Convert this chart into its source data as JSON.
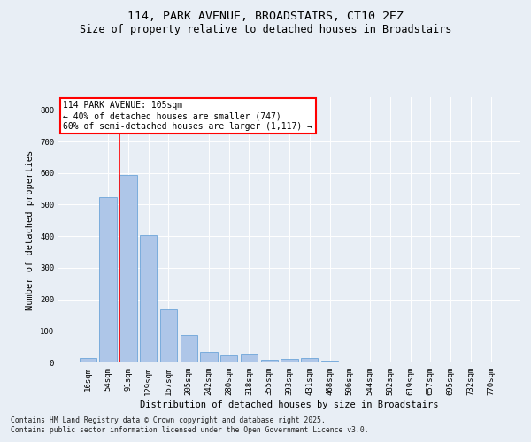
{
  "title1": "114, PARK AVENUE, BROADSTAIRS, CT10 2EZ",
  "title2": "Size of property relative to detached houses in Broadstairs",
  "xlabel": "Distribution of detached houses by size in Broadstairs",
  "ylabel": "Number of detached properties",
  "categories": [
    "16sqm",
    "54sqm",
    "91sqm",
    "129sqm",
    "167sqm",
    "205sqm",
    "242sqm",
    "280sqm",
    "318sqm",
    "355sqm",
    "393sqm",
    "431sqm",
    "468sqm",
    "506sqm",
    "544sqm",
    "582sqm",
    "619sqm",
    "657sqm",
    "695sqm",
    "732sqm",
    "770sqm"
  ],
  "values": [
    15,
    525,
    593,
    403,
    168,
    88,
    35,
    22,
    25,
    8,
    12,
    13,
    5,
    2,
    1,
    1,
    0,
    0,
    0,
    0,
    0
  ],
  "bar_color": "#aec6e8",
  "bar_edge_color": "#5b9bd5",
  "vline_color": "red",
  "vline_index": 1.55,
  "annotation_line1": "114 PARK AVENUE: 105sqm",
  "annotation_line2": "← 40% of detached houses are smaller (747)",
  "annotation_line3": "60% of semi-detached houses are larger (1,117) →",
  "annotation_box_color": "red",
  "annotation_box_facecolor": "white",
  "ylim": [
    0,
    840
  ],
  "yticks": [
    0,
    100,
    200,
    300,
    400,
    500,
    600,
    700,
    800
  ],
  "footnote1": "Contains HM Land Registry data © Crown copyright and database right 2025.",
  "footnote2": "Contains public sector information licensed under the Open Government Licence v3.0.",
  "bg_color": "#e8eef5",
  "title_fontsize": 9.5,
  "subtitle_fontsize": 8.5,
  "axis_label_fontsize": 7.5,
  "tick_fontsize": 6.5,
  "annotation_fontsize": 7.0,
  "footnote_fontsize": 5.8
}
